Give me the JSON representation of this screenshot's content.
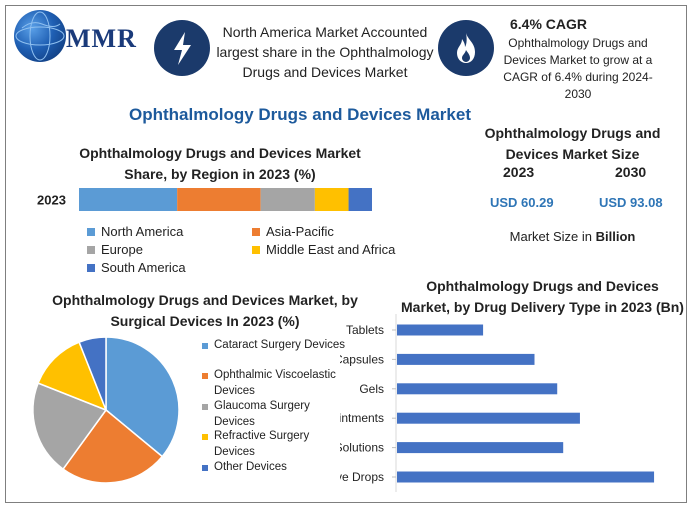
{
  "brand": {
    "logo_text": "MMR"
  },
  "header": {
    "highlight1": "North America Market Accounted largest share in the Ophthalmology Drugs and Devices Market",
    "cagr_title": "6.4% CAGR",
    "cagr_text": "Ophthalmology Drugs and Devices Market to grow at a CAGR of 6.4% during 2024-2030",
    "icons": [
      "lightning-icon",
      "flame-icon"
    ]
  },
  "main_title": "Ophthalmology Drugs and Devices Market",
  "market_size": {
    "title": "Ophthalmology Drugs and Devices Market Size",
    "year1": "2023",
    "year2": "2030",
    "value1": "USD 60.29",
    "value2": "USD 93.08",
    "unit_prefix": "Market Size in ",
    "unit_bold": "Billion"
  },
  "colors": {
    "blue": "#5b9bd5",
    "orange": "#ed7d31",
    "gray": "#a5a5a5",
    "yellow": "#ffc000",
    "darkblue": "#4472c4",
    "navy": "#1b3a6b",
    "accent": "#1d5a9c"
  },
  "chart_data": [
    {
      "type": "bar",
      "orientation": "horizontal-stacked",
      "title": "Ophthalmology Drugs and Devices Market Share, by Region in 2023 (%)",
      "categories": [
        "2023"
      ],
      "series": [
        {
          "name": "North America",
          "values": [
            33.5
          ]
        },
        {
          "name": "Asia-Pacific",
          "values": [
            28.5
          ]
        },
        {
          "name": "Europe",
          "values": [
            18.5
          ]
        },
        {
          "name": "Middle East and Africa",
          "values": [
            11.5
          ]
        },
        {
          "name": "South America",
          "values": [
            8
          ]
        }
      ],
      "legend": "bottom"
    },
    {
      "type": "pie",
      "title": "Ophthalmology Drugs and Devices Market, by Surgical Devices In 2023 (%)",
      "labels": [
        "Cataract Surgery Devices",
        "Ophthalmic Viscoelastic Devices",
        "Glaucoma Surgery Devices",
        "Refractive Surgery Devices",
        "Other Devices"
      ],
      "values": [
        36,
        24,
        21,
        13,
        6
      ],
      "legend": "right"
    },
    {
      "type": "bar",
      "orientation": "horizontal",
      "title": "Ophthalmology Drugs and Devices Market, by Drug Delivery Type in 2023 (Bn)",
      "categories": [
        "Tablets",
        "Capsules",
        "Gels",
        "Ointments",
        "Solutions",
        "Eye Drops"
      ],
      "values": [
        7.2,
        11.5,
        13.4,
        15.3,
        13.9,
        21.5
      ],
      "xlim": [
        0,
        23
      ]
    }
  ]
}
